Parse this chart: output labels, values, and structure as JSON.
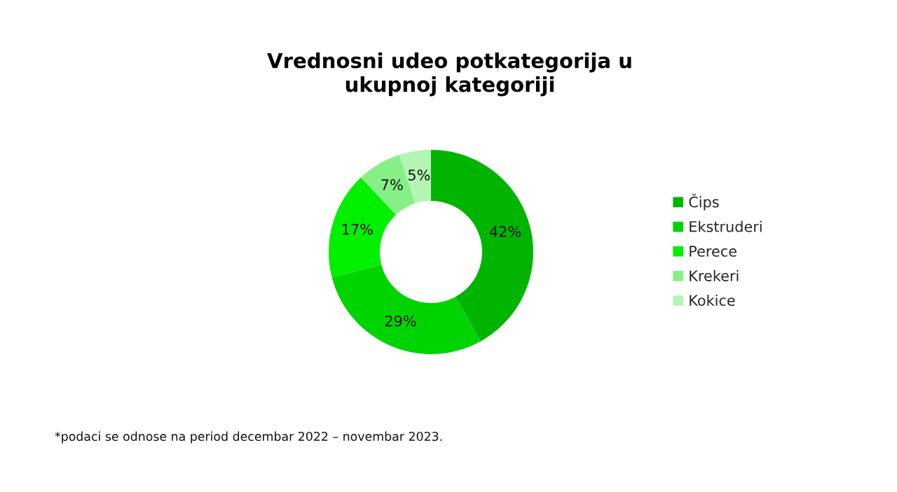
{
  "chart_data": {
    "type": "donut",
    "title": "Vrednosni udeo potkategorija u ukupnoj kategoriji",
    "categories": [
      "Čips",
      "Ekstruderi",
      "Perece",
      "Krekeri",
      "Kokice"
    ],
    "values": [
      42,
      29,
      17,
      7,
      5
    ],
    "value_labels": [
      "42%",
      "29%",
      "17%",
      "7%",
      "5%"
    ],
    "colors": [
      "#00b400",
      "#00d400",
      "#00f000",
      "#86f086",
      "#b4f5b4"
    ],
    "legend": "right",
    "annotations": [
      "*podaci se odnose na period decembar 2022 – novembar 2023."
    ]
  }
}
